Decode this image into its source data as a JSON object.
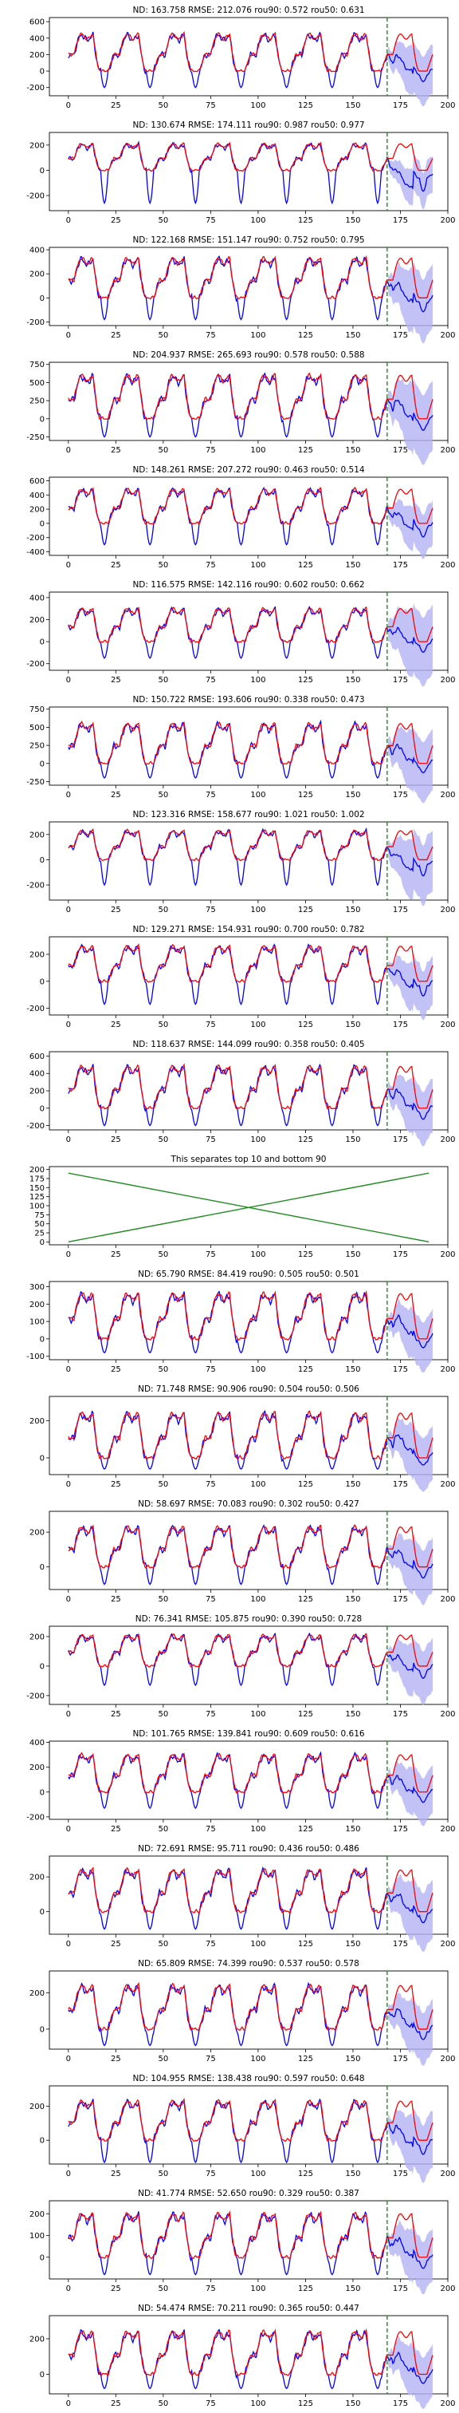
{
  "colors": {
    "actual": "#0000ff",
    "forecast": "#ff0000",
    "band": "#b3b3f5",
    "separator_lines": "#1f8c1f",
    "forecast_start": "#1f8c1f",
    "axes": "#000000",
    "background": "#ffffff"
  },
  "chart_data": [
    {
      "type": "line",
      "title": "ND:  163.758 RMSE:  212.076 rou90:  0.572 rou50:  0.631",
      "yticks": [
        -200,
        0,
        200,
        400,
        600
      ],
      "ylim": [
        -300,
        650
      ],
      "amp": 450,
      "neg": -200,
      "band": 250,
      "forecast_start": 168,
      "x_ticks": [
        0,
        25,
        50,
        75,
        100,
        125,
        150,
        175,
        200
      ],
      "xlim": [
        -10,
        200
      ]
    },
    {
      "type": "line",
      "title": "ND:  130.674 RMSE:  174.111 rou90:  0.987 rou50:  0.977",
      "yticks": [
        -200,
        0,
        200
      ],
      "ylim": [
        -320,
        300
      ],
      "amp": 210,
      "neg": -260,
      "band": 120,
      "forecast_start": 168,
      "x_ticks": [
        0,
        25,
        50,
        75,
        100,
        125,
        150,
        175,
        200
      ],
      "xlim": [
        -10,
        200
      ]
    },
    {
      "type": "line",
      "title": "ND:  122.168 RMSE:  151.147 rou90:  0.752 rou50:  0.795",
      "yticks": [
        -200,
        0,
        200,
        400
      ],
      "ylim": [
        -230,
        420
      ],
      "amp": 330,
      "neg": -180,
      "band": 220,
      "forecast_start": 168,
      "x_ticks": [
        0,
        25,
        50,
        75,
        100,
        125,
        150,
        175,
        200
      ],
      "xlim": [
        -10,
        200
      ]
    },
    {
      "type": "line",
      "title": "ND:  204.937 RMSE:  265.693 rou90:  0.578 rou50:  0.588",
      "yticks": [
        -250,
        0,
        250,
        500,
        750
      ],
      "ylim": [
        -300,
        780
      ],
      "amp": 600,
      "neg": -250,
      "band": 400,
      "forecast_start": 168,
      "x_ticks": [
        0,
        25,
        50,
        75,
        100,
        125,
        150,
        175,
        200
      ],
      "xlim": [
        -10,
        200
      ]
    },
    {
      "type": "line",
      "title": "ND:  148.261 RMSE:  207.272 rou90:  0.463 rou50:  0.514",
      "yticks": [
        -400,
        -200,
        0,
        200,
        400,
        600
      ],
      "ylim": [
        -450,
        650
      ],
      "amp": 480,
      "neg": -300,
      "band": 260,
      "forecast_start": 168,
      "x_ticks": [
        0,
        25,
        50,
        75,
        100,
        125,
        150,
        175,
        200
      ],
      "xlim": [
        -10,
        200
      ]
    },
    {
      "type": "line",
      "title": "ND:  116.575 RMSE:  142.116 rou90:  0.602 rou50:  0.662",
      "yticks": [
        -200,
        0,
        200,
        400
      ],
      "ylim": [
        -260,
        450
      ],
      "amp": 300,
      "neg": -150,
      "band": 260,
      "forecast_start": 168,
      "x_ticks": [
        0,
        25,
        50,
        75,
        100,
        125,
        150,
        175,
        200
      ],
      "xlim": [
        -10,
        200
      ]
    },
    {
      "type": "line",
      "title": "ND:  150.722 RMSE:  193.606 rou90:  0.338 rou50:  0.473",
      "yticks": [
        -250,
        0,
        250,
        500,
        750
      ],
      "ylim": [
        -300,
        780
      ],
      "amp": 550,
      "neg": -200,
      "band": 350,
      "forecast_start": 168,
      "x_ticks": [
        0,
        25,
        50,
        75,
        100,
        125,
        150,
        175,
        200
      ],
      "xlim": [
        -10,
        200
      ]
    },
    {
      "type": "line",
      "title": "ND:  123.316 RMSE:  158.677 rou90:  1.021 rou50:  1.002",
      "yticks": [
        -200,
        0,
        200
      ],
      "ylim": [
        -320,
        300
      ],
      "amp": 230,
      "neg": -200,
      "band": 200,
      "forecast_start": 168,
      "x_ticks": [
        0,
        25,
        50,
        75,
        100,
        125,
        150,
        175,
        200
      ],
      "xlim": [
        -10,
        200
      ]
    },
    {
      "type": "line",
      "title": "ND:  129.271 RMSE:  154.931 rou90:  0.700 rou50:  0.782",
      "yticks": [
        -200,
        0,
        200
      ],
      "ylim": [
        -250,
        330
      ],
      "amp": 260,
      "neg": -170,
      "band": 150,
      "forecast_start": 168,
      "x_ticks": [
        0,
        25,
        50,
        75,
        100,
        125,
        150,
        175,
        200
      ],
      "xlim": [
        -10,
        200
      ]
    },
    {
      "type": "line",
      "title": "ND:  118.637 RMSE:  144.099 rou90:  0.358 rou50:  0.405",
      "yticks": [
        -200,
        0,
        200,
        400,
        600
      ],
      "ylim": [
        -250,
        650
      ],
      "amp": 480,
      "neg": -200,
      "band": 260,
      "forecast_start": 168,
      "x_ticks": [
        0,
        25,
        50,
        75,
        100,
        125,
        150,
        175,
        200
      ],
      "xlim": [
        -10,
        200
      ]
    },
    {
      "type": "line",
      "title": "This separates top 10 and bottom 90",
      "separator": true,
      "yticks": [
        0,
        25,
        50,
        75,
        100,
        125,
        150,
        175,
        200
      ],
      "ylim": [
        -8,
        208
      ],
      "series": [
        {
          "x": [
            0,
            190
          ],
          "y": [
            0,
            190
          ]
        },
        {
          "x": [
            0,
            190
          ],
          "y": [
            190,
            0
          ]
        }
      ],
      "x_ticks": [
        0,
        25,
        50,
        75,
        100,
        125,
        150,
        175,
        200
      ],
      "xlim": [
        -10,
        200
      ]
    },
    {
      "type": "line",
      "title": "ND:  65.790 RMSE:  84.419 rou90:  0.505 rou50:  0.501",
      "yticks": [
        -100,
        0,
        100,
        200,
        300
      ],
      "ylim": [
        -120,
        330
      ],
      "amp": 260,
      "neg": -80,
      "band": 120,
      "forecast_start": 168,
      "x_ticks": [
        0,
        25,
        50,
        75,
        100,
        125,
        150,
        175,
        200
      ],
      "xlim": [
        -10,
        200
      ]
    },
    {
      "type": "line",
      "title": "ND:  71.748 RMSE:  90.906 rou90:  0.504 rou50:  0.506",
      "yticks": [
        0,
        200
      ],
      "ylim": [
        -90,
        330
      ],
      "amp": 240,
      "neg": -60,
      "band": 120,
      "forecast_start": 168,
      "x_ticks": [
        0,
        25,
        50,
        75,
        100,
        125,
        150,
        175,
        200
      ],
      "xlim": [
        -10,
        200
      ]
    },
    {
      "type": "line",
      "title": "ND:  58.697 RMSE:  70.083 rou90:  0.302 rou50:  0.427",
      "yticks": [
        0,
        200
      ],
      "ylim": [
        -130,
        320
      ],
      "amp": 230,
      "neg": -100,
      "band": 130,
      "forecast_start": 168,
      "x_ticks": [
        0,
        25,
        50,
        75,
        100,
        125,
        150,
        175,
        200
      ],
      "xlim": [
        -10,
        200
      ]
    },
    {
      "type": "line",
      "title": "ND:  76.341 RMSE:  105.875 rou90:  0.390 rou50:  0.728",
      "yticks": [
        -200,
        0,
        200
      ],
      "ylim": [
        -260,
        270
      ],
      "amp": 210,
      "neg": -130,
      "band": 150,
      "forecast_start": 168,
      "x_ticks": [
        0,
        25,
        50,
        75,
        100,
        125,
        150,
        175,
        200
      ],
      "xlim": [
        -10,
        200
      ]
    },
    {
      "type": "line",
      "title": "ND:  101.765 RMSE:  139.841 rou90:  0.609 rou50:  0.616",
      "yticks": [
        -200,
        0,
        200,
        400
      ],
      "ylim": [
        -220,
        410
      ],
      "amp": 300,
      "neg": -130,
      "band": 160,
      "forecast_start": 168,
      "x_ticks": [
        0,
        25,
        50,
        75,
        100,
        125,
        150,
        175,
        200
      ],
      "xlim": [
        -10,
        200
      ]
    },
    {
      "type": "line",
      "title": "ND:  72.691 RMSE:  95.711 rou90:  0.436 rou50:  0.486",
      "yticks": [
        0,
        200
      ],
      "ylim": [
        -130,
        320
      ],
      "amp": 240,
      "neg": -100,
      "band": 140,
      "forecast_start": 168,
      "x_ticks": [
        0,
        25,
        50,
        75,
        100,
        125,
        150,
        175,
        200
      ],
      "xlim": [
        -10,
        200
      ]
    },
    {
      "type": "line",
      "title": "ND:  65.809 RMSE:  74.399 rou90:  0.537 rou50:  0.578",
      "yticks": [
        0,
        200
      ],
      "ylim": [
        -110,
        320
      ],
      "amp": 240,
      "neg": -90,
      "band": 120,
      "forecast_start": 168,
      "x_ticks": [
        0,
        25,
        50,
        75,
        100,
        125,
        150,
        175,
        200
      ],
      "xlim": [
        -10,
        200
      ]
    },
    {
      "type": "line",
      "title": "ND:  104.955 RMSE:  138.438 rou90:  0.597 rou50:  0.648",
      "yticks": [
        0,
        200
      ],
      "ylim": [
        -140,
        320
      ],
      "amp": 230,
      "neg": -130,
      "band": 140,
      "forecast_start": 168,
      "x_ticks": [
        0,
        25,
        50,
        75,
        100,
        125,
        150,
        175,
        200
      ],
      "xlim": [
        -10,
        200
      ]
    },
    {
      "type": "line",
      "title": "ND:  41.774 RMSE:  52.650 rou90:  0.329 rou50:  0.387",
      "yticks": [
        0,
        100,
        200
      ],
      "ylim": [
        -100,
        260
      ],
      "amp": 200,
      "neg": -80,
      "band": 100,
      "forecast_start": 168,
      "x_ticks": [
        0,
        25,
        50,
        75,
        100,
        125,
        150,
        175,
        200
      ],
      "xlim": [
        -10,
        200
      ]
    },
    {
      "type": "line",
      "title": "ND:  54.474 RMSE:  70.211 rou90:  0.365 rou50:  0.447",
      "yticks": [
        0,
        200
      ],
      "ylim": [
        -110,
        330
      ],
      "amp": 240,
      "neg": -80,
      "band": 120,
      "forecast_start": 168,
      "x_ticks": [
        0,
        25,
        50,
        75,
        100,
        125,
        150,
        175,
        200
      ],
      "xlim": [
        -10,
        200
      ]
    }
  ]
}
